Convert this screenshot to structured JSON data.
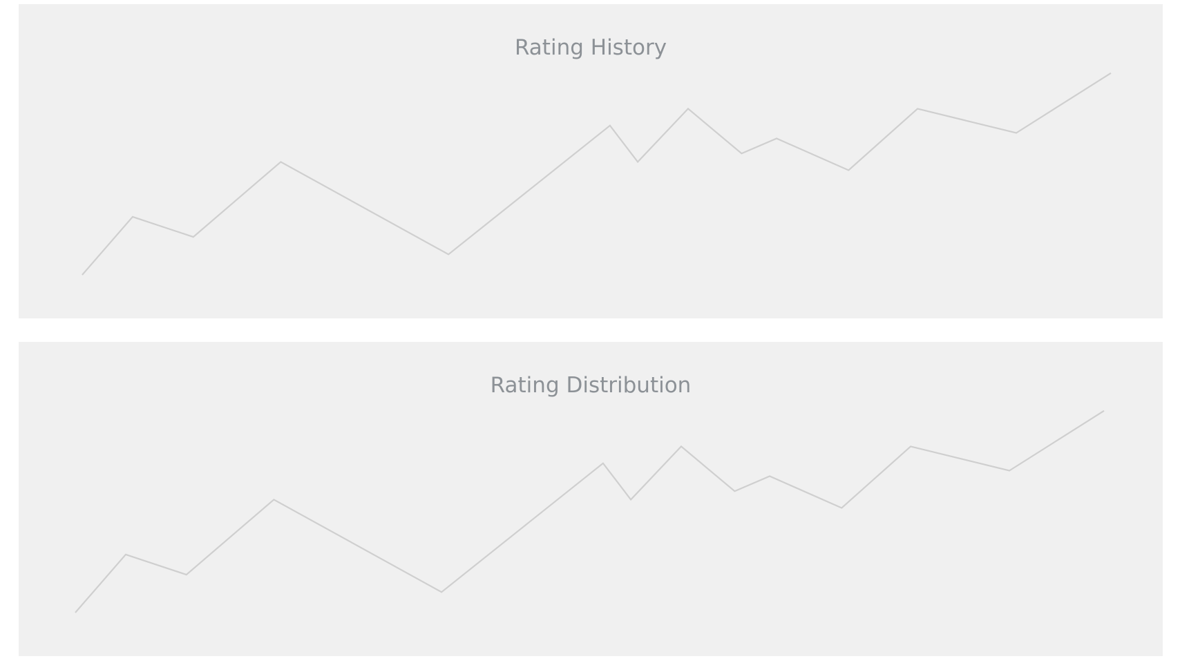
{
  "panels": [
    {
      "title": "Rating History"
    },
    {
      "title": "Rating Distribution"
    }
  ],
  "chart_data": [
    {
      "type": "line",
      "title": "Rating History",
      "xlabel": "",
      "ylabel": "",
      "grid": false,
      "ylim": [
        0,
        100
      ],
      "series": [
        {
          "x": [
            0.0,
            4.9,
            10.8,
            19.3,
            35.6,
            51.3,
            54.0,
            58.9,
            64.1,
            67.5,
            74.5,
            81.2,
            90.8,
            100.0
          ],
          "y": [
            0.0,
            28.3,
            18.5,
            55.1,
            10.0,
            72.8,
            55.1,
            81.0,
            59.2,
            66.5,
            51.0,
            81.0,
            69.2,
            98.4
          ],
          "color": "#cfcfcf"
        }
      ]
    },
    {
      "type": "line",
      "title": "Rating Distribution",
      "xlabel": "",
      "ylabel": "",
      "grid": false,
      "ylim": [
        0,
        100
      ],
      "series": [
        {
          "x": [
            0.0,
            4.9,
            10.8,
            19.3,
            35.6,
            51.3,
            54.0,
            58.9,
            64.1,
            67.5,
            74.5,
            81.2,
            90.8,
            100.0
          ],
          "y": [
            0.0,
            28.3,
            18.5,
            55.1,
            10.0,
            72.8,
            55.1,
            81.0,
            59.2,
            66.5,
            51.0,
            81.0,
            69.2,
            98.4
          ],
          "color": "#cfcfcf"
        }
      ]
    }
  ]
}
